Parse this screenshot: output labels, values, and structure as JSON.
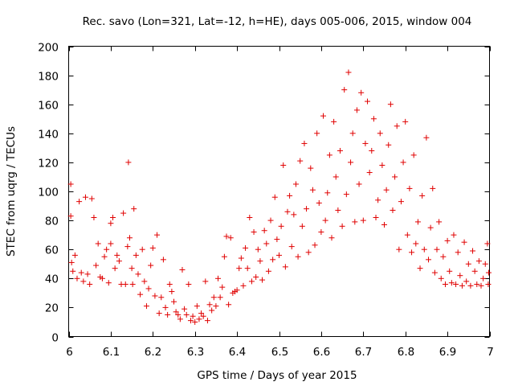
{
  "chart_data": {
    "type": "scatter",
    "title": "Rec. savo (Lon=321, Lat=-12, h=HE), days 005-006, 2015, window 004",
    "xlabel": "GPS time / Days of year 2015",
    "ylabel": "STEC from uqrg / TECUs",
    "xlim": [
      6,
      7
    ],
    "ylim": [
      0,
      200
    ],
    "x_ticks": [
      "6",
      "6.1",
      "6.2",
      "6.3",
      "6.4",
      "6.5",
      "6.6",
      "6.7",
      "6.8",
      "6.9",
      "7"
    ],
    "y_ticks": [
      "0",
      "20",
      "40",
      "60",
      "80",
      "100",
      "120",
      "140",
      "160",
      "180",
      "200"
    ],
    "marker": "+",
    "color": "#e00000",
    "series": [
      {
        "name": "STEC",
        "points": [
          [
            6.005,
            105
          ],
          [
            6.005,
            83
          ],
          [
            6.007,
            51
          ],
          [
            6.01,
            45
          ],
          [
            6.015,
            56
          ],
          [
            6.02,
            40
          ],
          [
            6.025,
            93
          ],
          [
            6.03,
            44
          ],
          [
            6.035,
            38
          ],
          [
            6.04,
            96
          ],
          [
            6.045,
            43
          ],
          [
            6.05,
            36
          ],
          [
            6.055,
            95
          ],
          [
            6.06,
            82
          ],
          [
            6.065,
            49
          ],
          [
            6.07,
            64
          ],
          [
            6.075,
            41
          ],
          [
            6.08,
            40
          ],
          [
            6.085,
            55
          ],
          [
            6.09,
            60
          ],
          [
            6.095,
            37
          ],
          [
            6.1,
            78
          ],
          [
            6.1,
            64
          ],
          [
            6.105,
            82
          ],
          [
            6.11,
            47
          ],
          [
            6.115,
            56
          ],
          [
            6.12,
            52
          ],
          [
            6.125,
            36
          ],
          [
            6.13,
            85
          ],
          [
            6.135,
            36
          ],
          [
            6.14,
            62
          ],
          [
            6.142,
            120
          ],
          [
            6.145,
            68
          ],
          [
            6.15,
            47
          ],
          [
            6.152,
            36
          ],
          [
            6.155,
            88
          ],
          [
            6.16,
            56
          ],
          [
            6.165,
            43
          ],
          [
            6.17,
            29
          ],
          [
            6.175,
            60
          ],
          [
            6.18,
            38
          ],
          [
            6.185,
            21
          ],
          [
            6.19,
            33
          ],
          [
            6.195,
            49
          ],
          [
            6.2,
            61
          ],
          [
            6.205,
            28
          ],
          [
            6.21,
            70
          ],
          [
            6.215,
            16
          ],
          [
            6.22,
            27
          ],
          [
            6.225,
            53
          ],
          [
            6.23,
            20
          ],
          [
            6.235,
            15
          ],
          [
            6.24,
            36
          ],
          [
            6.245,
            31
          ],
          [
            6.25,
            24
          ],
          [
            6.255,
            17
          ],
          [
            6.26,
            15
          ],
          [
            6.265,
            12
          ],
          [
            6.27,
            46
          ],
          [
            6.275,
            19
          ],
          [
            6.28,
            15
          ],
          [
            6.285,
            36
          ],
          [
            6.29,
            11
          ],
          [
            6.295,
            14
          ],
          [
            6.3,
            10
          ],
          [
            6.305,
            21
          ],
          [
            6.31,
            12
          ],
          [
            6.315,
            16
          ],
          [
            6.32,
            14
          ],
          [
            6.325,
            38
          ],
          [
            6.33,
            11
          ],
          [
            6.335,
            22
          ],
          [
            6.34,
            18
          ],
          [
            6.345,
            27
          ],
          [
            6.35,
            21
          ],
          [
            6.355,
            40
          ],
          [
            6.36,
            27
          ],
          [
            6.365,
            34
          ],
          [
            6.37,
            55
          ],
          [
            6.375,
            69
          ],
          [
            6.38,
            22
          ],
          [
            6.385,
            68
          ],
          [
            6.39,
            30
          ],
          [
            6.395,
            31
          ],
          [
            6.4,
            32
          ],
          [
            6.405,
            47
          ],
          [
            6.41,
            54
          ],
          [
            6.415,
            35
          ],
          [
            6.42,
            61
          ],
          [
            6.425,
            47
          ],
          [
            6.43,
            82
          ],
          [
            6.435,
            38
          ],
          [
            6.44,
            72
          ],
          [
            6.445,
            41
          ],
          [
            6.45,
            60
          ],
          [
            6.455,
            52
          ],
          [
            6.46,
            39
          ],
          [
            6.465,
            73
          ],
          [
            6.47,
            64
          ],
          [
            6.475,
            45
          ],
          [
            6.48,
            80
          ],
          [
            6.485,
            53
          ],
          [
            6.49,
            96
          ],
          [
            6.495,
            67
          ],
          [
            6.5,
            56
          ],
          [
            6.505,
            76
          ],
          [
            6.51,
            118
          ],
          [
            6.515,
            48
          ],
          [
            6.52,
            86
          ],
          [
            6.525,
            97
          ],
          [
            6.53,
            62
          ],
          [
            6.535,
            84
          ],
          [
            6.54,
            105
          ],
          [
            6.545,
            55
          ],
          [
            6.55,
            121
          ],
          [
            6.555,
            76
          ],
          [
            6.56,
            133
          ],
          [
            6.565,
            88
          ],
          [
            6.57,
            58
          ],
          [
            6.575,
            116
          ],
          [
            6.58,
            101
          ],
          [
            6.585,
            63
          ],
          [
            6.59,
            140
          ],
          [
            6.595,
            92
          ],
          [
            6.6,
            72
          ],
          [
            6.605,
            152
          ],
          [
            6.61,
            80
          ],
          [
            6.615,
            99
          ],
          [
            6.62,
            125
          ],
          [
            6.625,
            68
          ],
          [
            6.63,
            148
          ],
          [
            6.635,
            110
          ],
          [
            6.64,
            87
          ],
          [
            6.645,
            128
          ],
          [
            6.65,
            76
          ],
          [
            6.655,
            170
          ],
          [
            6.66,
            98
          ],
          [
            6.665,
            182
          ],
          [
            6.67,
            120
          ],
          [
            6.675,
            140
          ],
          [
            6.68,
            79
          ],
          [
            6.685,
            156
          ],
          [
            6.69,
            105
          ],
          [
            6.695,
            168
          ],
          [
            6.7,
            80
          ],
          [
            6.705,
            133
          ],
          [
            6.71,
            162
          ],
          [
            6.715,
            113
          ],
          [
            6.72,
            128
          ],
          [
            6.725,
            150
          ],
          [
            6.73,
            82
          ],
          [
            6.735,
            94
          ],
          [
            6.74,
            140
          ],
          [
            6.745,
            118
          ],
          [
            6.75,
            77
          ],
          [
            6.755,
            101
          ],
          [
            6.76,
            132
          ],
          [
            6.765,
            160
          ],
          [
            6.77,
            87
          ],
          [
            6.775,
            110
          ],
          [
            6.78,
            145
          ],
          [
            6.785,
            60
          ],
          [
            6.79,
            93
          ],
          [
            6.795,
            120
          ],
          [
            6.8,
            148
          ],
          [
            6.805,
            70
          ],
          [
            6.81,
            102
          ],
          [
            6.815,
            58
          ],
          [
            6.82,
            125
          ],
          [
            6.825,
            64
          ],
          [
            6.83,
            79
          ],
          [
            6.835,
            47
          ],
          [
            6.84,
            97
          ],
          [
            6.845,
            60
          ],
          [
            6.85,
            137
          ],
          [
            6.855,
            53
          ],
          [
            6.86,
            75
          ],
          [
            6.865,
            102
          ],
          [
            6.87,
            44
          ],
          [
            6.875,
            60
          ],
          [
            6.88,
            79
          ],
          [
            6.885,
            40
          ],
          [
            6.89,
            55
          ],
          [
            6.895,
            36
          ],
          [
            6.9,
            66
          ],
          [
            6.905,
            45
          ],
          [
            6.91,
            37
          ],
          [
            6.915,
            70
          ],
          [
            6.92,
            36
          ],
          [
            6.925,
            58
          ],
          [
            6.93,
            42
          ],
          [
            6.935,
            35
          ],
          [
            6.94,
            65
          ],
          [
            6.945,
            38
          ],
          [
            6.95,
            50
          ],
          [
            6.955,
            35
          ],
          [
            6.96,
            59
          ],
          [
            6.965,
            45
          ],
          [
            6.97,
            36
          ],
          [
            6.975,
            52
          ],
          [
            6.98,
            35
          ],
          [
            6.985,
            40
          ],
          [
            6.99,
            50
          ],
          [
            6.995,
            64
          ],
          [
            6.997,
            36
          ],
          [
            6.998,
            44
          ]
        ]
      }
    ]
  }
}
